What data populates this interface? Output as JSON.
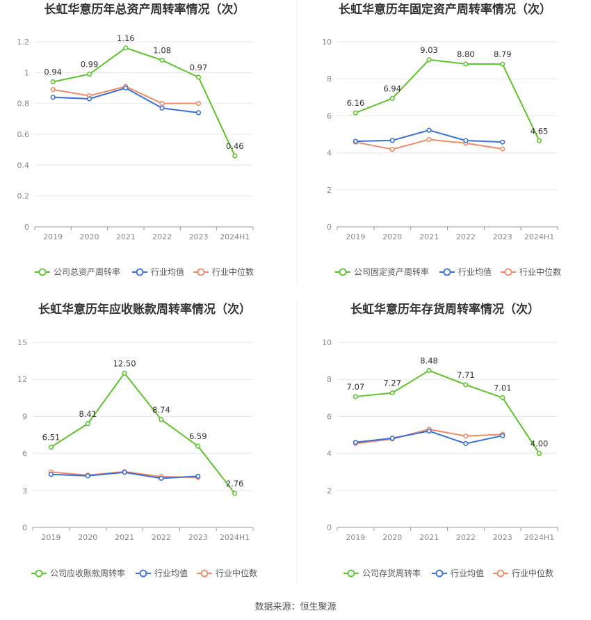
{
  "source": "数据来源：恒生聚源",
  "colors": {
    "company": "#5cc42b",
    "avg": "#3a6fd8",
    "median": "#f08a65"
  },
  "legend_avg": "行业均值",
  "legend_median": "行业中位数",
  "chart_data": [
    {
      "type": "line",
      "title": "长虹华意历年总资产周转率情况（次）",
      "categories": [
        "2019",
        "2020",
        "2021",
        "2022",
        "2023",
        "2024H1"
      ],
      "ylim": [
        0,
        1.2
      ],
      "yticks": [
        "0",
        "0.2",
        "0.4",
        "0.6",
        "0.8",
        "1",
        "1.2"
      ],
      "series": [
        {
          "name": "公司总资产周转率",
          "key": "company",
          "values": [
            0.94,
            0.99,
            1.16,
            1.08,
            0.97,
            0.46
          ],
          "labels": [
            "0.94",
            "0.99",
            "1.16",
            "1.08",
            "0.97",
            "0.46"
          ]
        },
        {
          "name": "行业均值",
          "key": "avg",
          "values": [
            0.84,
            0.83,
            0.9,
            0.77,
            0.74,
            null
          ]
        },
        {
          "name": "行业中位数",
          "key": "median",
          "values": [
            0.89,
            0.85,
            0.91,
            0.8,
            0.8,
            null
          ]
        }
      ]
    },
    {
      "type": "line",
      "title": "长虹华意历年固定资产周转率情况（次）",
      "categories": [
        "2019",
        "2020",
        "2021",
        "2022",
        "2023",
        "2024H1"
      ],
      "ylim": [
        0,
        10
      ],
      "yticks": [
        "0",
        "2",
        "4",
        "6",
        "8",
        "10"
      ],
      "series": [
        {
          "name": "公司固定资产周转率",
          "key": "company",
          "values": [
            6.16,
            6.94,
            9.03,
            8.8,
            8.79,
            4.65
          ],
          "labels": [
            "6.16",
            "6.94",
            "9.03",
            "8.80",
            "8.79",
            "4.65"
          ]
        },
        {
          "name": "行业均值",
          "key": "avg",
          "values": [
            4.62,
            4.67,
            5.22,
            4.66,
            4.58,
            null
          ]
        },
        {
          "name": "行业中位数",
          "key": "median",
          "values": [
            4.58,
            4.19,
            4.72,
            4.52,
            4.21,
            null
          ]
        }
      ]
    },
    {
      "type": "line",
      "title": "长虹华意历年应收账款周转率情况（次）",
      "categories": [
        "2019",
        "2020",
        "2021",
        "2022",
        "2023",
        "2024H1"
      ],
      "ylim": [
        0,
        15
      ],
      "yticks": [
        "0",
        "3",
        "6",
        "9",
        "12",
        "15"
      ],
      "series": [
        {
          "name": "公司应收账款周转率",
          "key": "company",
          "values": [
            6.51,
            8.41,
            12.5,
            8.74,
            6.59,
            2.76
          ],
          "labels": [
            "6.51",
            "8.41",
            "12.50",
            "8.74",
            "6.59",
            "2.76"
          ]
        },
        {
          "name": "行业均值",
          "key": "avg",
          "values": [
            4.3,
            4.18,
            4.47,
            3.98,
            4.15,
            null
          ]
        },
        {
          "name": "行业中位数",
          "key": "median",
          "values": [
            4.48,
            4.24,
            4.52,
            4.12,
            4.05,
            null
          ]
        }
      ]
    },
    {
      "type": "line",
      "title": "长虹华意历年存货周转率情况（次）",
      "categories": [
        "2019",
        "2020",
        "2021",
        "2022",
        "2023",
        "2024H1"
      ],
      "ylim": [
        0,
        10
      ],
      "yticks": [
        "0",
        "2",
        "4",
        "6",
        "8",
        "10"
      ],
      "series": [
        {
          "name": "公司存货周转率",
          "key": "company",
          "values": [
            7.07,
            7.27,
            8.48,
            7.71,
            7.01,
            4.0
          ],
          "labels": [
            "7.07",
            "7.27",
            "8.48",
            "7.71",
            "7.01",
            "4.00"
          ]
        },
        {
          "name": "行业均值",
          "key": "avg",
          "values": [
            4.6,
            4.82,
            5.21,
            4.53,
            4.96,
            null
          ]
        },
        {
          "name": "行业中位数",
          "key": "median",
          "values": [
            4.53,
            4.78,
            5.3,
            4.94,
            5.03,
            null
          ]
        }
      ]
    }
  ]
}
